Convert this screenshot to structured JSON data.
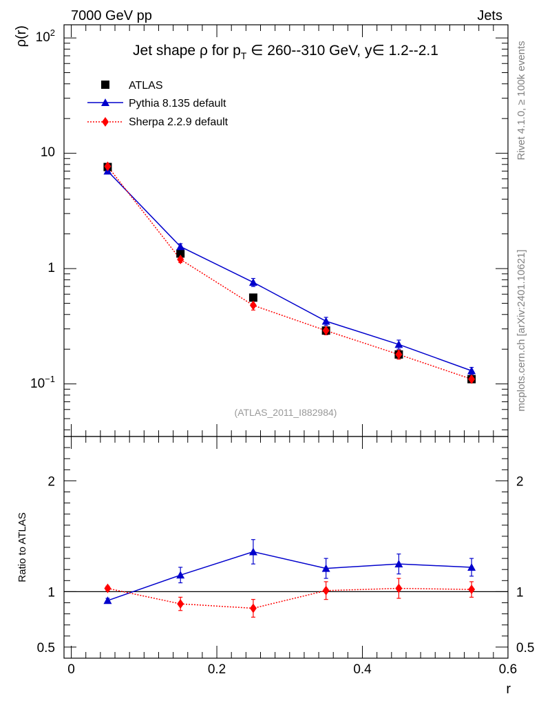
{
  "header": {
    "left": "7000 GeV pp",
    "right": "Jets"
  },
  "side_labels": {
    "upper": "Rivet 4.1.0, ≥ 100k events",
    "lower": "mcplots.cern.ch [arXiv:2401.10621]"
  },
  "watermark": "(ATLAS_2011_I882984)",
  "chart_data": [
    {
      "type": "line",
      "panel": "main",
      "title": {
        "t1": "Jet shape ",
        "rho": "ρ",
        "t2": " for p",
        "sub": "T",
        "t3": " ∈ 260--310 GeV, y∈ 1.2--2.1"
      },
      "ylabel": "ρ(r)",
      "yscale": "log",
      "ylim": [
        0.035,
        130
      ],
      "xlim": [
        -0.01,
        0.6
      ],
      "ytick_labels": {
        "e2_base": "10",
        "e2_exp": "2",
        "ten": "10",
        "one": "1",
        "em1_base": "10",
        "em1_exp": "−1"
      },
      "legend_position": "top-left",
      "series": [
        {
          "name": "ATLAS",
          "color": "#000000",
          "marker": "square",
          "line": "none",
          "x": [
            0.05,
            0.15,
            0.25,
            0.35,
            0.45,
            0.55
          ],
          "y": [
            7.6,
            1.35,
            0.56,
            0.29,
            0.18,
            0.11
          ]
        },
        {
          "name": "Pythia 8.135 default",
          "color": "#0000cc",
          "marker": "triangle",
          "line": "solid",
          "x": [
            0.05,
            0.15,
            0.25,
            0.35,
            0.45,
            0.55
          ],
          "y": [
            7.0,
            1.55,
            0.76,
            0.35,
            0.22,
            0.13
          ],
          "err_rel": [
            0.03,
            0.06,
            0.08,
            0.08,
            0.09,
            0.07
          ]
        },
        {
          "name": "Sherpa 2.2.9 default",
          "color": "#ff0000",
          "marker": "diamond",
          "line": "dotted",
          "x": [
            0.05,
            0.15,
            0.25,
            0.35,
            0.45,
            0.55
          ],
          "y": [
            7.7,
            1.2,
            0.48,
            0.29,
            0.18,
            0.11
          ],
          "err_rel": [
            0.03,
            0.06,
            0.09,
            0.08,
            0.09,
            0.07
          ]
        }
      ]
    },
    {
      "type": "line",
      "panel": "ratio",
      "ylabel": "Ratio to ATLAS",
      "xlabel": "r",
      "ylim": [
        0.4,
        2.4
      ],
      "xlim": [
        -0.01,
        0.6
      ],
      "xticks": [
        0,
        0.2,
        0.4,
        0.6
      ],
      "xtick_labels": [
        "0",
        "0.2",
        "0.4",
        "0.6"
      ],
      "yticks": [
        0.5,
        1,
        2
      ],
      "ytick_labels": [
        "0.5",
        "1",
        "2"
      ],
      "series": [
        {
          "name": "Pythia 8.135 default",
          "color": "#0000cc",
          "marker": "triangle",
          "line": "solid",
          "x": [
            0.05,
            0.15,
            0.25,
            0.35,
            0.45,
            0.55
          ],
          "y": [
            0.92,
            1.15,
            1.36,
            1.21,
            1.25,
            1.22
          ],
          "err": [
            0.02,
            0.07,
            0.11,
            0.09,
            0.09,
            0.08
          ]
        },
        {
          "name": "Sherpa 2.2.9 default",
          "color": "#ff0000",
          "marker": "diamond",
          "line": "dotted",
          "x": [
            0.05,
            0.15,
            0.25,
            0.35,
            0.45,
            0.55
          ],
          "y": [
            1.03,
            0.89,
            0.85,
            1.01,
            1.03,
            1.02
          ],
          "err": [
            0.02,
            0.06,
            0.08,
            0.08,
            0.09,
            0.07
          ]
        }
      ]
    }
  ]
}
